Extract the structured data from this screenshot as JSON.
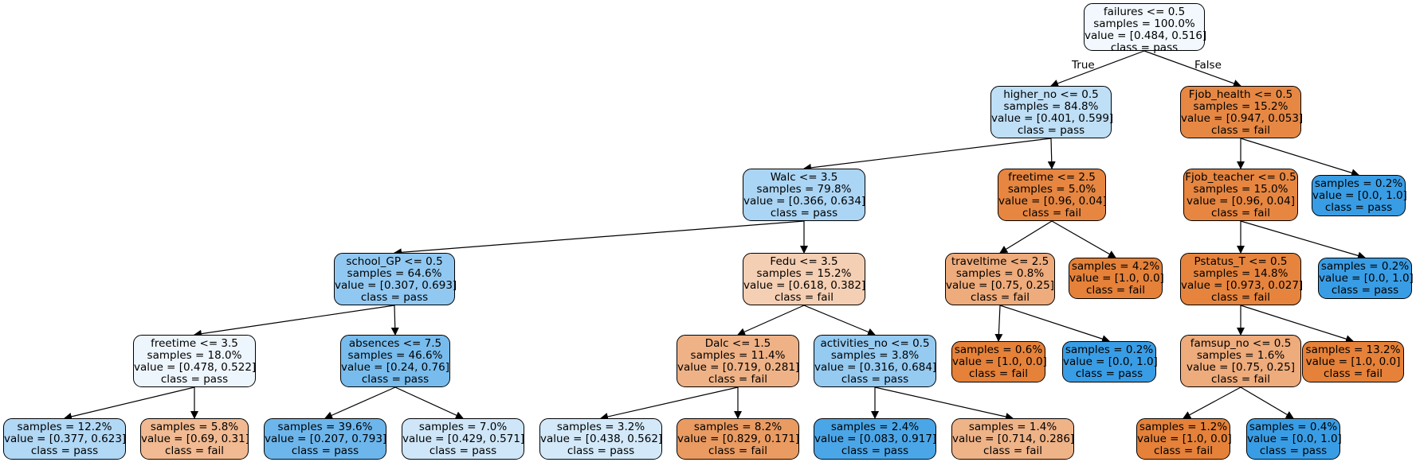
{
  "nodes": [
    {
      "id": "n0",
      "lines": [
        "failures <= 0.5",
        "samples = 100.0%",
        "value = [0.484, 0.516]",
        "class = pass"
      ],
      "fill": "#f2f8fd"
    },
    {
      "id": "n1",
      "lines": [
        "higher_no <= 0.5",
        "samples = 84.8%",
        "value = [0.401, 0.599]",
        "class = pass"
      ],
      "fill": "#bedff6"
    },
    {
      "id": "n2",
      "lines": [
        "Fjob_health <= 0.5",
        "samples = 15.2%",
        "value = [0.947, 0.053]",
        "class = fail"
      ],
      "fill": "#e68844"
    },
    {
      "id": "n3",
      "lines": [
        "Walc <= 3.5",
        "samples = 79.8%",
        "value = [0.366, 0.634]",
        "class = pass"
      ],
      "fill": "#abd5f4"
    },
    {
      "id": "n4",
      "lines": [
        "freetime <= 2.5",
        "samples = 5.0%",
        "value = [0.96, 0.04]",
        "class = fail"
      ],
      "fill": "#e68641"
    },
    {
      "id": "n5",
      "lines": [
        "Fjob_teacher <= 0.5",
        "samples = 15.0%",
        "value = [0.96, 0.04]",
        "class = fail"
      ],
      "fill": "#e68641"
    },
    {
      "id": "n6",
      "lines": [
        "samples = 0.2%",
        "value = [0.0, 1.0]",
        "class = pass"
      ],
      "fill": "#399de5"
    },
    {
      "id": "n7",
      "lines": [
        "school_GP <= 0.5",
        "samples = 64.6%",
        "value = [0.307, 0.693]",
        "class = pass"
      ],
      "fill": "#91c8f1"
    },
    {
      "id": "n8",
      "lines": [
        "Fedu <= 3.5",
        "samples = 15.2%",
        "value = [0.618, 0.382]",
        "class = fail"
      ],
      "fill": "#f5cfb3"
    },
    {
      "id": "n9",
      "lines": [
        "traveltime <= 2.5",
        "samples = 0.8%",
        "value = [0.75, 0.25]",
        "class = fail"
      ],
      "fill": "#eeab7b"
    },
    {
      "id": "n10",
      "lines": [
        "samples = 4.2%",
        "value = [1.0, 0.0]",
        "class = fail"
      ],
      "fill": "#e58139"
    },
    {
      "id": "n11",
      "lines": [
        "Pstatus_T <= 0.5",
        "samples = 14.8%",
        "value = [0.973, 0.027]",
        "class = fail"
      ],
      "fill": "#e6843e"
    },
    {
      "id": "n12",
      "lines": [
        "samples = 0.2%",
        "value = [0.0, 1.0]",
        "class = pass"
      ],
      "fill": "#399de5"
    },
    {
      "id": "n13",
      "lines": [
        "freetime <= 3.5",
        "samples = 18.0%",
        "value = [0.478, 0.522]",
        "class = pass"
      ],
      "fill": "#eef6fd"
    },
    {
      "id": "n14",
      "lines": [
        "absences <= 7.5",
        "samples = 46.6%",
        "value = [0.24, 0.76]",
        "class = pass"
      ],
      "fill": "#78bced"
    },
    {
      "id": "n15",
      "lines": [
        "Dalc <= 1.5",
        "samples = 11.4%",
        "value = [0.719, 0.281]",
        "class = fail"
      ],
      "fill": "#efb286"
    },
    {
      "id": "n16",
      "lines": [
        "activities_no <= 0.5",
        "samples = 3.8%",
        "value = [0.316, 0.684]",
        "class = pass"
      ],
      "fill": "#95caf1"
    },
    {
      "id": "n17",
      "lines": [
        "samples = 0.6%",
        "value = [1.0, 0.0]",
        "class = fail"
      ],
      "fill": "#e58139"
    },
    {
      "id": "n18",
      "lines": [
        "samples = 0.2%",
        "value = [0.0, 1.0]",
        "class = pass"
      ],
      "fill": "#399de5"
    },
    {
      "id": "n19",
      "lines": [
        "famsup_no <= 0.5",
        "samples = 1.6%",
        "value = [0.75, 0.25]",
        "class = fail"
      ],
      "fill": "#eeab7b"
    },
    {
      "id": "n20",
      "lines": [
        "samples = 13.2%",
        "value = [1.0, 0.0]",
        "class = fail"
      ],
      "fill": "#e58139"
    },
    {
      "id": "n21",
      "lines": [
        "samples = 12.2%",
        "value = [0.377, 0.623]",
        "class = pass"
      ],
      "fill": "#b1d8f5"
    },
    {
      "id": "n22",
      "lines": [
        "samples = 5.8%",
        "value = [0.69, 0.31]",
        "class = fail"
      ],
      "fill": "#f1ba92"
    },
    {
      "id": "n23",
      "lines": [
        "samples = 39.6%",
        "value = [0.207, 0.793]",
        "class = pass"
      ],
      "fill": "#6db6ec"
    },
    {
      "id": "n24",
      "lines": [
        "samples = 7.0%",
        "value = [0.429, 0.571]",
        "class = pass"
      ],
      "fill": "#cee6f8"
    },
    {
      "id": "n25",
      "lines": [
        "samples = 3.2%",
        "value = [0.438, 0.562]",
        "class = pass"
      ],
      "fill": "#d3e9f9"
    },
    {
      "id": "n26",
      "lines": [
        "samples = 8.2%",
        "value = [0.829, 0.171]",
        "class = fail"
      ],
      "fill": "#ea9b62"
    },
    {
      "id": "n27",
      "lines": [
        "samples = 2.4%",
        "value = [0.083, 0.917]",
        "class = pass"
      ],
      "fill": "#4ba6e7"
    },
    {
      "id": "n28",
      "lines": [
        "samples = 1.4%",
        "value = [0.714, 0.286]",
        "class = fail"
      ],
      "fill": "#efb388"
    },
    {
      "id": "n29",
      "lines": [
        "samples = 1.2%",
        "value = [1.0, 0.0]",
        "class = fail"
      ],
      "fill": "#e58139"
    },
    {
      "id": "n30",
      "lines": [
        "samples = 0.4%",
        "value = [0.0, 1.0]",
        "class = pass"
      ],
      "fill": "#399de5"
    }
  ],
  "edges": [
    [
      "n0",
      "n1"
    ],
    [
      "n0",
      "n2"
    ],
    [
      "n1",
      "n3"
    ],
    [
      "n1",
      "n4"
    ],
    [
      "n2",
      "n5"
    ],
    [
      "n2",
      "n6"
    ],
    [
      "n3",
      "n7"
    ],
    [
      "n3",
      "n8"
    ],
    [
      "n4",
      "n9"
    ],
    [
      "n4",
      "n10"
    ],
    [
      "n5",
      "n11"
    ],
    [
      "n5",
      "n12"
    ],
    [
      "n7",
      "n13"
    ],
    [
      "n7",
      "n14"
    ],
    [
      "n8",
      "n15"
    ],
    [
      "n8",
      "n16"
    ],
    [
      "n9",
      "n17"
    ],
    [
      "n9",
      "n18"
    ],
    [
      "n11",
      "n19"
    ],
    [
      "n11",
      "n20"
    ],
    [
      "n13",
      "n21"
    ],
    [
      "n13",
      "n22"
    ],
    [
      "n14",
      "n23"
    ],
    [
      "n14",
      "n24"
    ],
    [
      "n15",
      "n25"
    ],
    [
      "n15",
      "n26"
    ],
    [
      "n16",
      "n27"
    ],
    [
      "n16",
      "n28"
    ],
    [
      "n19",
      "n29"
    ],
    [
      "n19",
      "n30"
    ]
  ],
  "root_edge_labels": {
    "left": "True",
    "right": "False"
  }
}
